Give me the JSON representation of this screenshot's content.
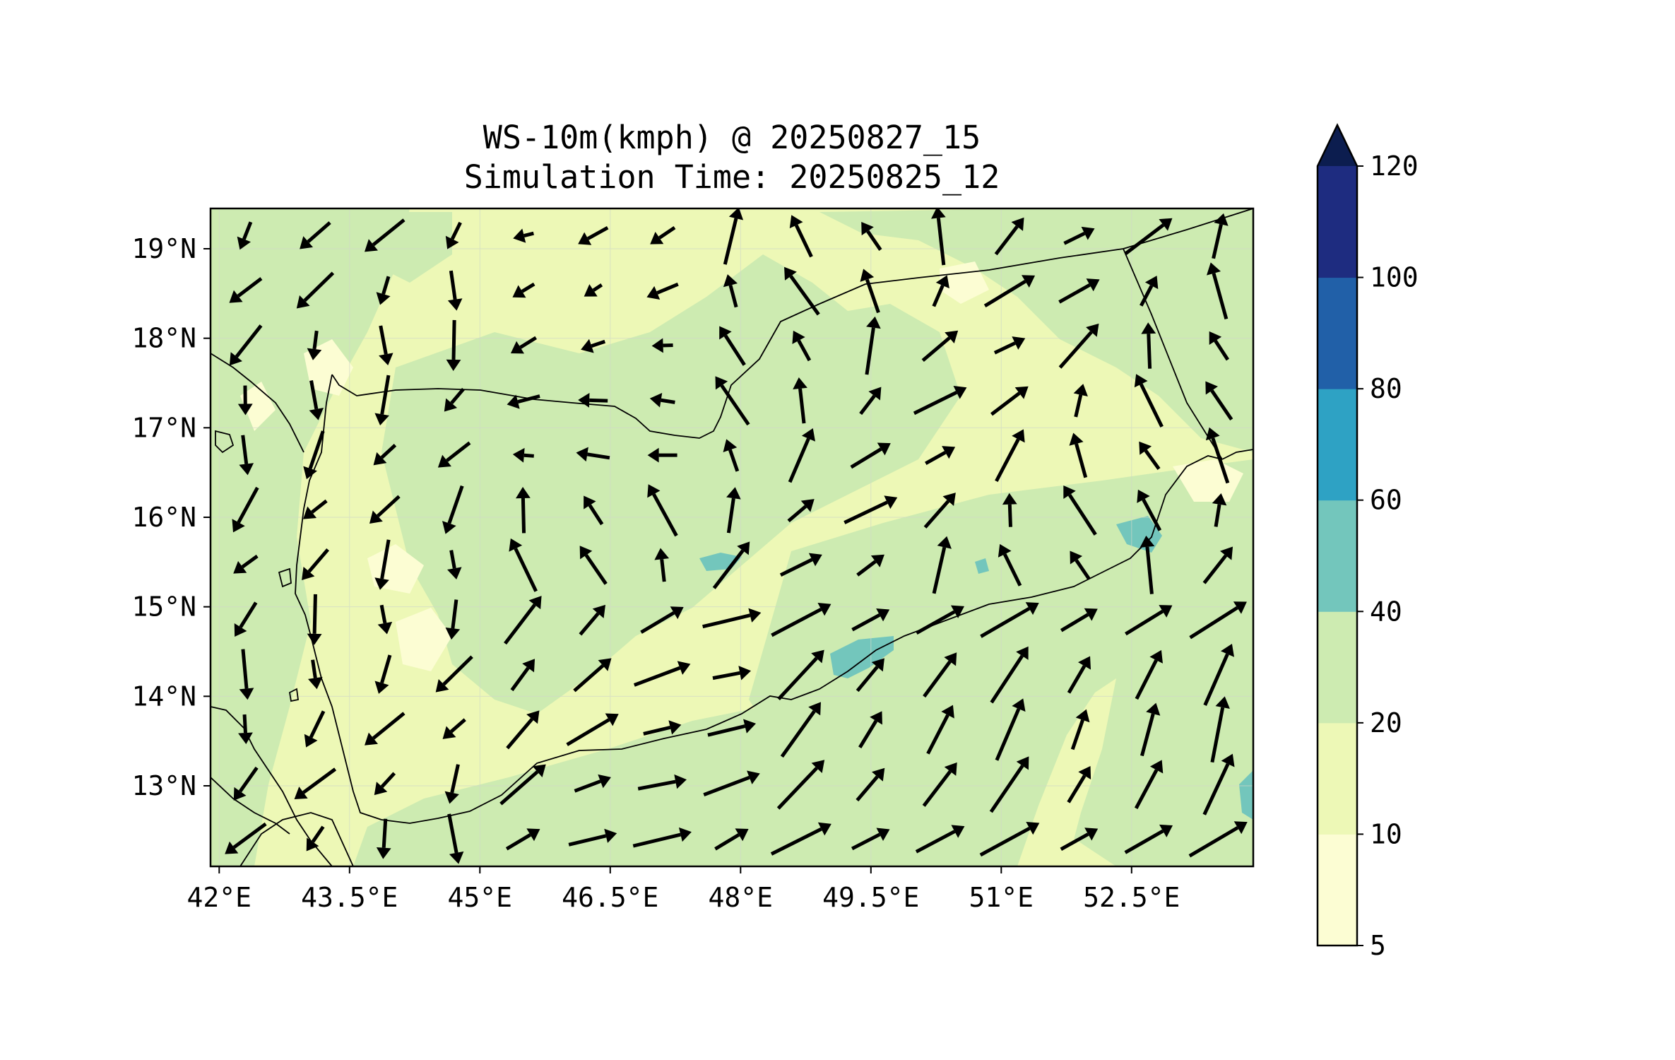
{
  "figure": {
    "title_line1": "WS-10m(kmph) @ 20250827_15",
    "title_line2": "Simulation Time: 20250825_12"
  },
  "map": {
    "lon_range": [
      41.9,
      53.9
    ],
    "lat_range": [
      12.1,
      19.45
    ],
    "lon_ticks": [
      "42°E",
      "43.5°E",
      "45°E",
      "46.5°E",
      "48°E",
      "49.5°E",
      "51°E",
      "52.5°E"
    ],
    "lon_tick_values": [
      42,
      43.5,
      45,
      46.5,
      48,
      49.5,
      51,
      52.5
    ],
    "lat_ticks": [
      "19°N",
      "18°N",
      "17°N",
      "16°N",
      "15°N",
      "14°N",
      "13°N"
    ],
    "lat_tick_values": [
      19,
      18,
      17,
      16,
      15,
      14,
      13
    ]
  },
  "colorbar": {
    "levels": [
      5,
      10,
      20,
      40,
      60,
      80,
      100,
      120
    ],
    "labels": [
      "5",
      "10",
      "20",
      "40",
      "60",
      "80",
      "100",
      "120"
    ],
    "colors": [
      "#fcfdd3",
      "#edf8b6",
      "#cdebb1",
      "#73c6bc",
      "#2ea2c4",
      "#2160a8",
      "#1e2c80"
    ],
    "extend_color": "#0c1d4f"
  }
}
